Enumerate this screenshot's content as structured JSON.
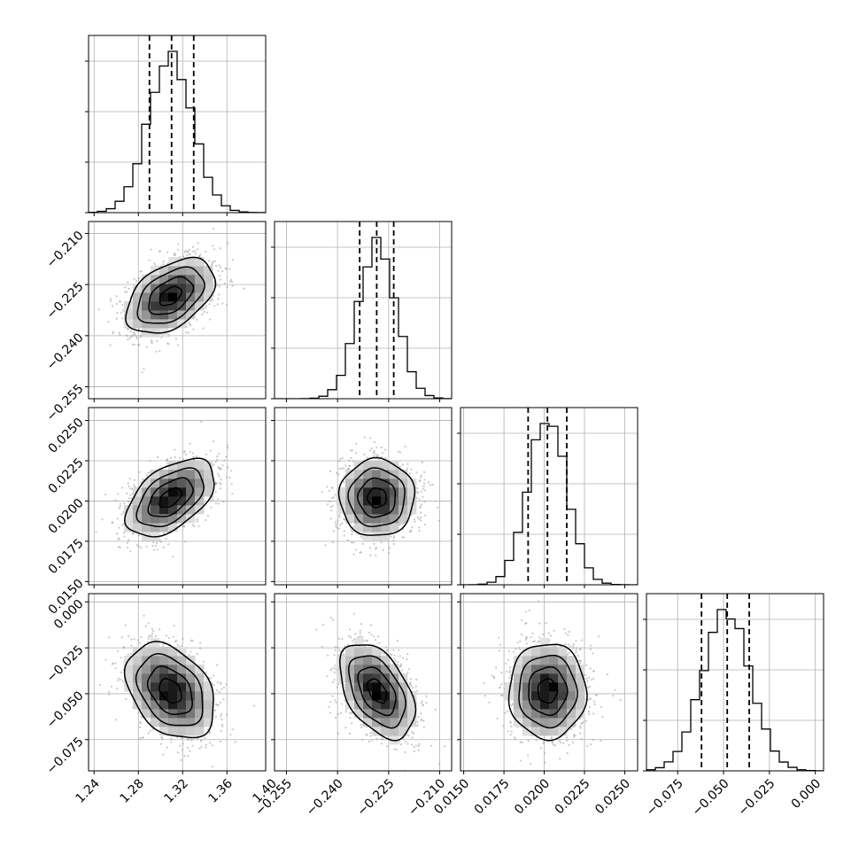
{
  "chart_data": {
    "type": "corner",
    "title": "",
    "grid": true,
    "parameters": [
      {
        "label": "",
        "range": [
          1.235,
          1.395
        ],
        "ticks": [
          1.24,
          1.28,
          1.32,
          1.36,
          1.4
        ],
        "tick_labels": [
          "1.24",
          "1.28",
          "1.32",
          "1.36",
          "1.40"
        ],
        "mean": 1.309,
        "std": 0.02,
        "quantiles": [
          1.29,
          1.31,
          1.33
        ]
      },
      {
        "label": "",
        "range": [
          -0.2585,
          -0.2065
        ],
        "ticks": [
          -0.255,
          -0.24,
          -0.225,
          -0.21
        ],
        "tick_labels": [
          "−0.255",
          "−0.240",
          "−0.225",
          "−0.210"
        ],
        "mean": -0.2284,
        "std": 0.0055,
        "quantiles": [
          -0.2335,
          -0.2285,
          -0.2235
        ]
      },
      {
        "label": "",
        "range": [
          0.0148,
          0.0258
        ],
        "ticks": [
          0.015,
          0.0175,
          0.02,
          0.0225,
          0.025
        ],
        "tick_labels": [
          "0.0150",
          "0.0175",
          "0.0200",
          "0.0225",
          "0.0250"
        ],
        "mean": 0.0202,
        "std": 0.0012,
        "quantiles": [
          0.019,
          0.0202,
          0.0214
        ]
      },
      {
        "label": "",
        "range": [
          -0.092,
          0.0045
        ],
        "ticks": [
          -0.075,
          -0.05,
          -0.025,
          0.0
        ],
        "tick_labels": [
          "−0.075",
          "−0.050",
          "−0.025",
          "0.000"
        ],
        "mean": -0.0485,
        "std": 0.013,
        "quantiles": [
          -0.062,
          -0.048,
          -0.036
        ]
      }
    ],
    "correlations": [
      [
        1.0,
        0.45,
        0.5,
        -0.35
      ],
      [
        0.45,
        1.0,
        0.0,
        -0.45
      ],
      [
        0.5,
        0.0,
        1.0,
        0.0
      ],
      [
        -0.35,
        -0.45,
        0.0,
        1.0
      ]
    ],
    "histogram_bins": 20,
    "contour_levels": [
      0.5,
      1.0,
      1.5,
      2.0
    ],
    "colors": {
      "line": "#000000",
      "points": "#9a9a9a",
      "grid": "#b0b0b0",
      "density": "#000000"
    }
  }
}
